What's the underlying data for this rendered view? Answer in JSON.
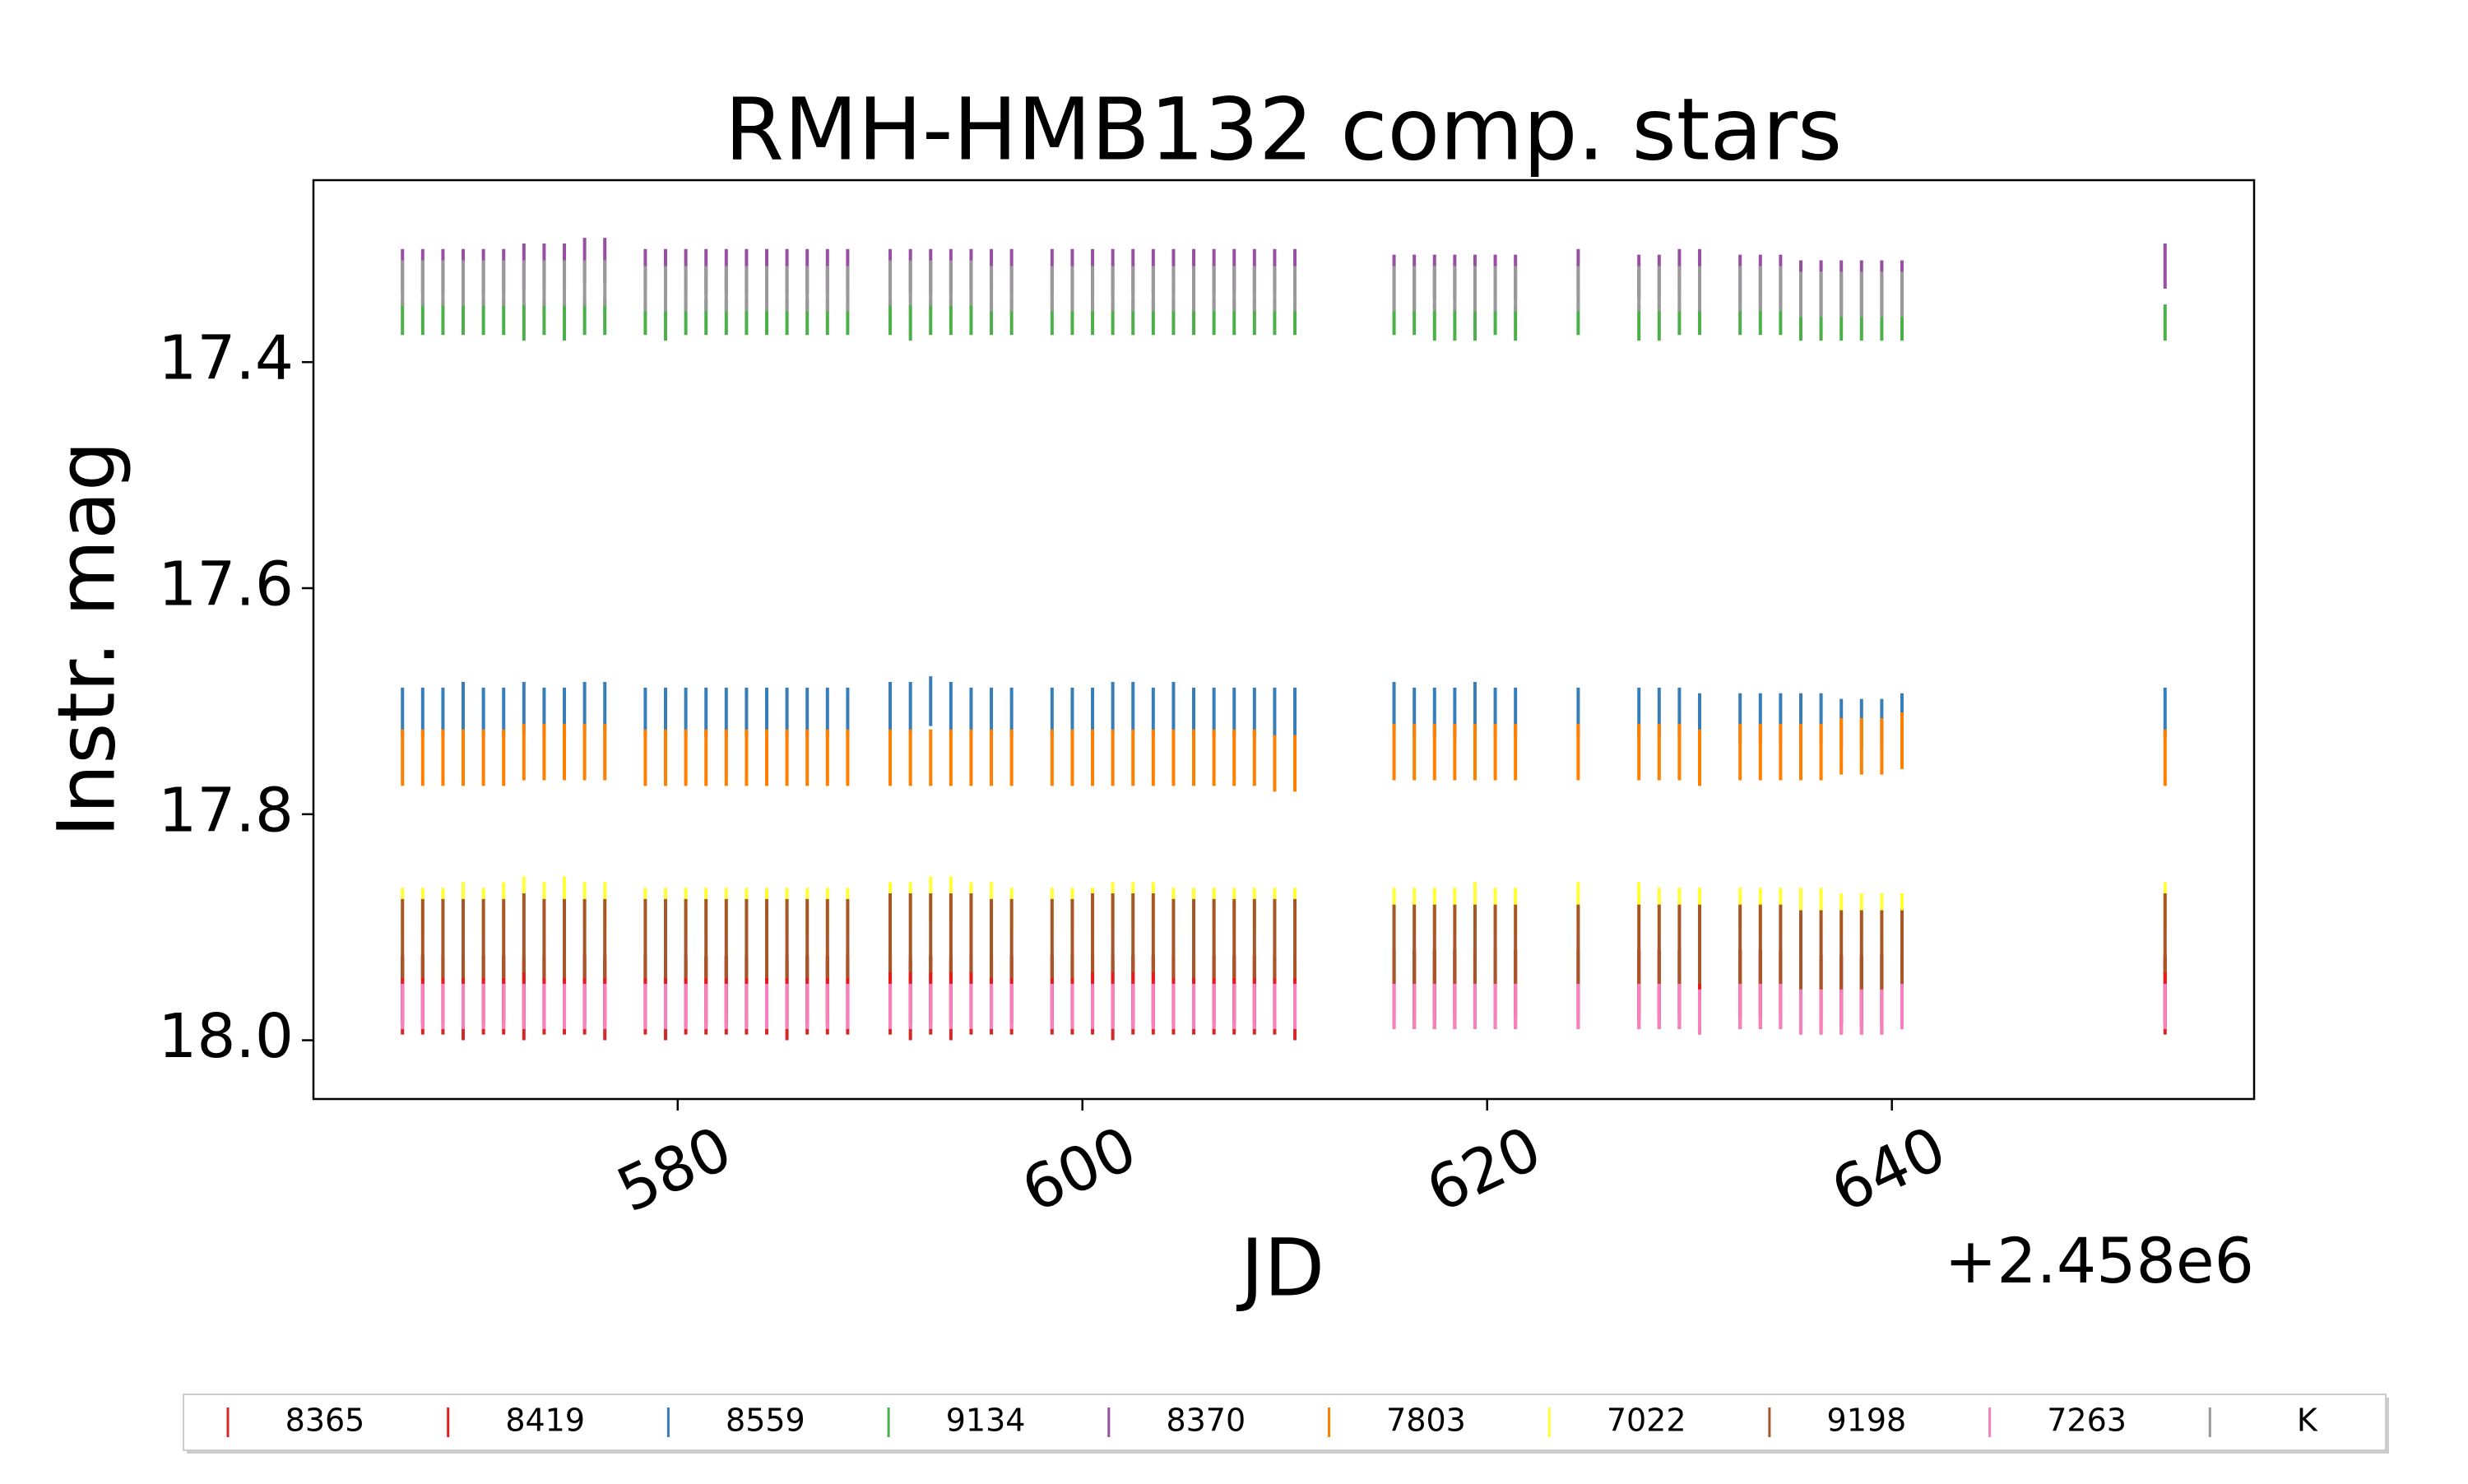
{
  "chart_data": {
    "type": "errorbar",
    "title": "RMH-HMB132 comp. stars",
    "xlabel": "JD",
    "ylabel": "Instr. mag",
    "x_offset_label": "+2.458e6",
    "xlim": [
      562.0,
      657.9
    ],
    "xticks": [
      580,
      600,
      620,
      640
    ],
    "ylim": [
      18.052,
      17.239
    ],
    "yticks": [
      17.4,
      17.6,
      17.8,
      {
        "value": 18,
        "label": "18.0"
      }
    ],
    "grid": false,
    "legend": "below",
    "x": [
      566.4,
      567.4,
      568.4,
      569.4,
      570.4,
      571.4,
      572.4,
      573.4,
      574.4,
      575.4,
      576.4,
      578.4,
      579.4,
      580.4,
      581.4,
      582.4,
      583.4,
      584.4,
      585.4,
      586.4,
      587.4,
      588.4,
      590.5,
      591.5,
      592.5,
      593.5,
      594.5,
      595.5,
      596.5,
      598.5,
      599.5,
      600.5,
      601.5,
      602.5,
      603.5,
      604.5,
      605.5,
      606.5,
      607.5,
      608.5,
      609.5,
      610.5,
      615.4,
      616.4,
      617.4,
      618.4,
      619.4,
      620.4,
      621.4,
      624.5,
      627.5,
      628.5,
      629.5,
      630.5,
      632.5,
      633.5,
      634.5,
      635.5,
      636.5,
      637.5,
      638.5,
      639.5,
      640.5,
      653.5
    ],
    "series": [
      {
        "name": "8365",
        "color": "#d62728",
        "error": 0.035,
        "values": [
          17.96,
          17.96,
          17.96,
          17.965,
          17.96,
          17.96,
          17.965,
          17.96,
          17.96,
          17.96,
          17.965,
          17.96,
          17.965,
          17.96,
          17.96,
          17.96,
          17.96,
          17.96,
          17.965,
          17.96,
          17.96,
          17.96,
          17.96,
          17.965,
          17.96,
          17.965,
          17.96,
          17.96,
          17.96,
          17.96,
          17.96,
          17.96,
          17.965,
          17.96,
          17.96,
          17.96,
          17.96,
          17.96,
          17.96,
          17.96,
          17.96,
          17.965,
          17.955,
          17.955,
          17.955,
          17.955,
          17.955,
          17.955,
          17.955,
          17.955,
          17.955,
          17.955,
          17.955,
          17.96,
          17.955,
          17.955,
          17.955,
          17.96,
          17.96,
          17.96,
          17.96,
          17.96,
          17.955,
          17.96
        ]
      },
      {
        "name": "8419",
        "color": "#e41a1c",
        "error": 0.03,
        "values": [
          17.955,
          17.955,
          17.955,
          17.955,
          17.955,
          17.955,
          17.955,
          17.955,
          17.955,
          17.955,
          17.955,
          17.955,
          17.955,
          17.955,
          17.955,
          17.955,
          17.955,
          17.955,
          17.955,
          17.955,
          17.955,
          17.955,
          17.955,
          17.955,
          17.955,
          17.955,
          17.955,
          17.955,
          17.955,
          17.955,
          17.955,
          17.955,
          17.955,
          17.955,
          17.955,
          17.955,
          17.955,
          17.955,
          17.955,
          17.955,
          17.955,
          17.955,
          17.95,
          17.95,
          17.95,
          17.95,
          17.95,
          17.95,
          17.95,
          17.95,
          17.95,
          17.95,
          17.95,
          17.95,
          17.95,
          17.95,
          17.95,
          17.955,
          17.955,
          17.955,
          17.955,
          17.955,
          17.95,
          17.955
        ]
      },
      {
        "name": "8559",
        "color": "#377eb8",
        "error": 0.022,
        "values": [
          17.71,
          17.71,
          17.71,
          17.705,
          17.71,
          17.71,
          17.705,
          17.71,
          17.71,
          17.705,
          17.705,
          17.71,
          17.71,
          17.71,
          17.71,
          17.71,
          17.71,
          17.71,
          17.71,
          17.71,
          17.71,
          17.71,
          17.705,
          17.705,
          17.7,
          17.705,
          17.71,
          17.71,
          17.71,
          17.71,
          17.71,
          17.71,
          17.705,
          17.705,
          17.71,
          17.705,
          17.71,
          17.71,
          17.71,
          17.71,
          17.71,
          17.71,
          17.705,
          17.71,
          17.71,
          17.71,
          17.705,
          17.71,
          17.71,
          17.71,
          17.71,
          17.71,
          17.71,
          17.715,
          17.715,
          17.715,
          17.715,
          17.715,
          17.715,
          17.72,
          17.72,
          17.72,
          17.715,
          17.71
        ]
      },
      {
        "name": "9134",
        "color": "#4daf4a",
        "error": 0.016,
        "values": [
          17.36,
          17.36,
          17.36,
          17.36,
          17.36,
          17.36,
          17.365,
          17.36,
          17.365,
          17.36,
          17.36,
          17.36,
          17.365,
          17.36,
          17.36,
          17.36,
          17.36,
          17.36,
          17.36,
          17.36,
          17.36,
          17.36,
          17.36,
          17.365,
          17.36,
          17.36,
          17.36,
          17.36,
          17.36,
          17.36,
          17.36,
          17.36,
          17.36,
          17.36,
          17.36,
          17.36,
          17.36,
          17.36,
          17.36,
          17.36,
          17.36,
          17.36,
          17.36,
          17.36,
          17.365,
          17.365,
          17.365,
          17.36,
          17.365,
          17.36,
          17.365,
          17.365,
          17.36,
          17.36,
          17.36,
          17.36,
          17.36,
          17.365,
          17.365,
          17.365,
          17.365,
          17.365,
          17.365,
          17.365
        ]
      },
      {
        "name": "8370",
        "color": "#984ea3",
        "error": 0.02,
        "values": [
          17.32,
          17.32,
          17.32,
          17.32,
          17.32,
          17.32,
          17.315,
          17.315,
          17.315,
          17.31,
          17.31,
          17.32,
          17.32,
          17.32,
          17.32,
          17.32,
          17.32,
          17.32,
          17.32,
          17.32,
          17.32,
          17.32,
          17.32,
          17.32,
          17.32,
          17.32,
          17.32,
          17.32,
          17.32,
          17.32,
          17.32,
          17.32,
          17.32,
          17.32,
          17.32,
          17.32,
          17.32,
          17.32,
          17.32,
          17.32,
          17.32,
          17.32,
          17.325,
          17.325,
          17.325,
          17.325,
          17.325,
          17.325,
          17.325,
          17.32,
          17.325,
          17.325,
          17.32,
          17.32,
          17.325,
          17.325,
          17.325,
          17.33,
          17.33,
          17.33,
          17.33,
          17.33,
          17.33,
          17.315
        ]
      },
      {
        "name": "7803",
        "color": "#ff7f00",
        "error": 0.025,
        "values": [
          17.75,
          17.75,
          17.75,
          17.75,
          17.75,
          17.75,
          17.745,
          17.745,
          17.745,
          17.745,
          17.745,
          17.75,
          17.75,
          17.75,
          17.75,
          17.75,
          17.75,
          17.75,
          17.75,
          17.75,
          17.75,
          17.75,
          17.75,
          17.75,
          17.75,
          17.75,
          17.75,
          17.75,
          17.75,
          17.75,
          17.75,
          17.75,
          17.75,
          17.75,
          17.75,
          17.75,
          17.75,
          17.75,
          17.75,
          17.75,
          17.755,
          17.755,
          17.745,
          17.745,
          17.745,
          17.745,
          17.745,
          17.745,
          17.745,
          17.745,
          17.745,
          17.745,
          17.745,
          17.75,
          17.745,
          17.745,
          17.745,
          17.745,
          17.745,
          17.74,
          17.74,
          17.74,
          17.735,
          17.75
        ]
      },
      {
        "name": "7022",
        "color": "#ffff33",
        "error": 0.02,
        "values": [
          17.885,
          17.885,
          17.885,
          17.88,
          17.885,
          17.88,
          17.875,
          17.88,
          17.875,
          17.88,
          17.88,
          17.885,
          17.885,
          17.885,
          17.885,
          17.885,
          17.885,
          17.885,
          17.885,
          17.885,
          17.885,
          17.885,
          17.88,
          17.88,
          17.875,
          17.875,
          17.88,
          17.88,
          17.885,
          17.885,
          17.885,
          17.885,
          17.88,
          17.88,
          17.88,
          17.885,
          17.885,
          17.885,
          17.885,
          17.885,
          17.885,
          17.885,
          17.885,
          17.885,
          17.885,
          17.885,
          17.88,
          17.885,
          17.885,
          17.88,
          17.88,
          17.885,
          17.885,
          17.885,
          17.885,
          17.885,
          17.885,
          17.885,
          17.885,
          17.89,
          17.89,
          17.89,
          17.89,
          17.88
        ]
      },
      {
        "name": "9198",
        "color": "#a65628",
        "error": 0.035,
        "values": [
          17.91,
          17.91,
          17.91,
          17.91,
          17.91,
          17.91,
          17.905,
          17.91,
          17.91,
          17.91,
          17.91,
          17.91,
          17.91,
          17.91,
          17.91,
          17.91,
          17.91,
          17.91,
          17.91,
          17.91,
          17.91,
          17.91,
          17.905,
          17.905,
          17.905,
          17.905,
          17.905,
          17.91,
          17.91,
          17.91,
          17.91,
          17.905,
          17.905,
          17.905,
          17.905,
          17.91,
          17.91,
          17.91,
          17.91,
          17.91,
          17.91,
          17.91,
          17.915,
          17.915,
          17.915,
          17.915,
          17.915,
          17.915,
          17.915,
          17.915,
          17.915,
          17.915,
          17.915,
          17.915,
          17.915,
          17.915,
          17.915,
          17.92,
          17.92,
          17.92,
          17.92,
          17.92,
          17.92,
          17.905
        ]
      },
      {
        "name": "7263",
        "color": "#f781bf",
        "error": 0.02,
        "values": [
          17.97,
          17.97,
          17.97,
          17.97,
          17.97,
          17.97,
          17.97,
          17.97,
          17.97,
          17.97,
          17.97,
          17.97,
          17.97,
          17.97,
          17.97,
          17.97,
          17.97,
          17.97,
          17.97,
          17.97,
          17.97,
          17.97,
          17.97,
          17.97,
          17.97,
          17.97,
          17.97,
          17.97,
          17.97,
          17.97,
          17.97,
          17.97,
          17.97,
          17.97,
          17.97,
          17.97,
          17.97,
          17.97,
          17.97,
          17.97,
          17.97,
          17.97,
          17.97,
          17.97,
          17.97,
          17.97,
          17.97,
          17.97,
          17.97,
          17.97,
          17.97,
          17.97,
          17.97,
          17.975,
          17.97,
          17.97,
          17.97,
          17.975,
          17.975,
          17.975,
          17.975,
          17.975,
          17.97,
          17.97
        ]
      },
      {
        "name": "K",
        "color": "#999999",
        "error": 0.02,
        "values": [
          17.33,
          17.33,
          17.33,
          17.33,
          17.33,
          17.33,
          17.33,
          17.33,
          17.33,
          17.33,
          17.33,
          17.335,
          17.335,
          17.335,
          17.335,
          17.335,
          17.335,
          17.335,
          17.335,
          17.335,
          17.335,
          17.335,
          17.33,
          17.33,
          17.33,
          17.33,
          17.33,
          17.335,
          17.335,
          17.335,
          17.335,
          17.335,
          17.335,
          17.335,
          17.335,
          17.335,
          17.335,
          17.335,
          17.335,
          17.335,
          17.335,
          17.335,
          17.335,
          17.335,
          17.335,
          17.335,
          17.335,
          17.335,
          17.335,
          17.335,
          17.335,
          17.335,
          17.335,
          17.335,
          17.335,
          17.335,
          17.335,
          17.34,
          17.34,
          17.34,
          17.34,
          17.34,
          17.34,
          null
        ]
      }
    ]
  }
}
